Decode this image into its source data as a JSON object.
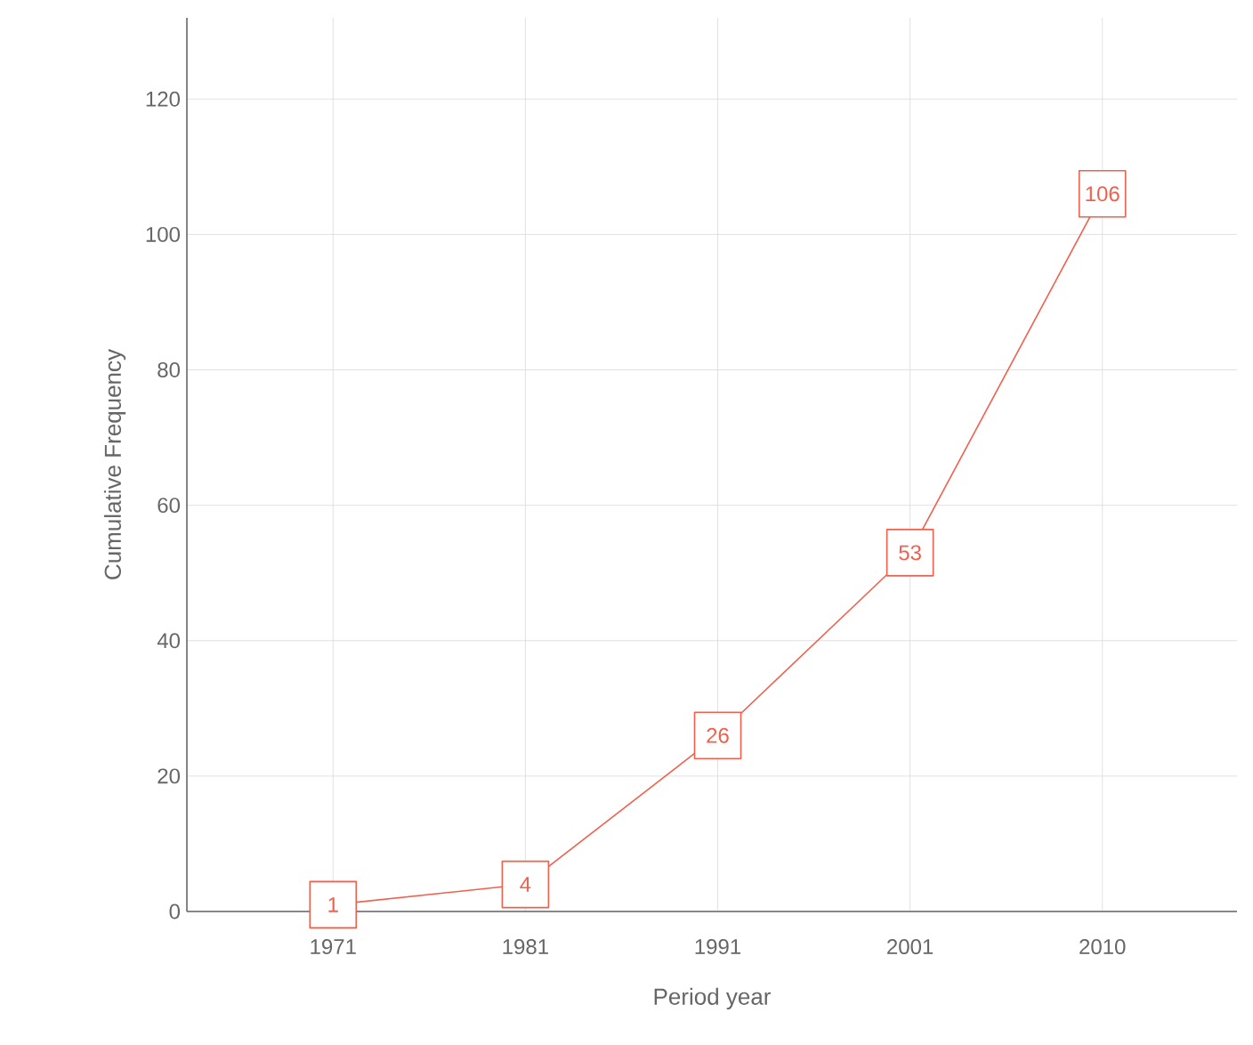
{
  "chart_data": {
    "type": "line",
    "xlabel": "Period year",
    "ylabel": "Cumulative Frequency",
    "categories": [
      "1971",
      "1981",
      "1991",
      "2001",
      "2010"
    ],
    "series": [
      {
        "color": "#f0604d",
        "values": [
          1,
          4,
          26,
          53,
          106
        ]
      }
    ],
    "marker": "square",
    "ylim": [
      0,
      132
    ],
    "yticks": [
      0,
      20,
      40,
      60,
      80,
      100,
      120
    ],
    "grid": true,
    "data_labels": true
  }
}
